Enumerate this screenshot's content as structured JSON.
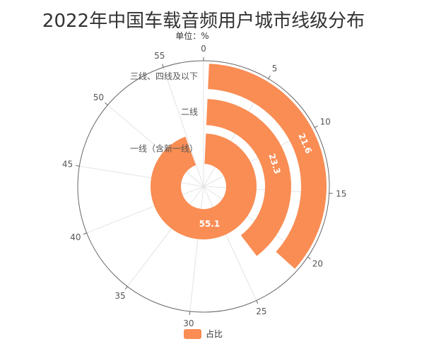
{
  "chart_data": {
    "type": "polar-bar",
    "title": "2022年中国车载音频用户城市线级分布",
    "subtitle": "单位：%",
    "categories": [
      "一线（含新一线）",
      "二线",
      "三线、四线及以下"
    ],
    "series": [
      {
        "name": "占比",
        "values": [
          55.1,
          23.3,
          21.6
        ]
      }
    ],
    "angle_axis": {
      "min": 0,
      "max": 58,
      "ticks": [
        0,
        5,
        10,
        15,
        20,
        25,
        30,
        35,
        40,
        45,
        50,
        55
      ]
    },
    "grid": true,
    "legend_position": "bottom",
    "colors": {
      "bar": "#F98D54",
      "axis": "#666666",
      "grid": "#E3E3E3"
    }
  }
}
